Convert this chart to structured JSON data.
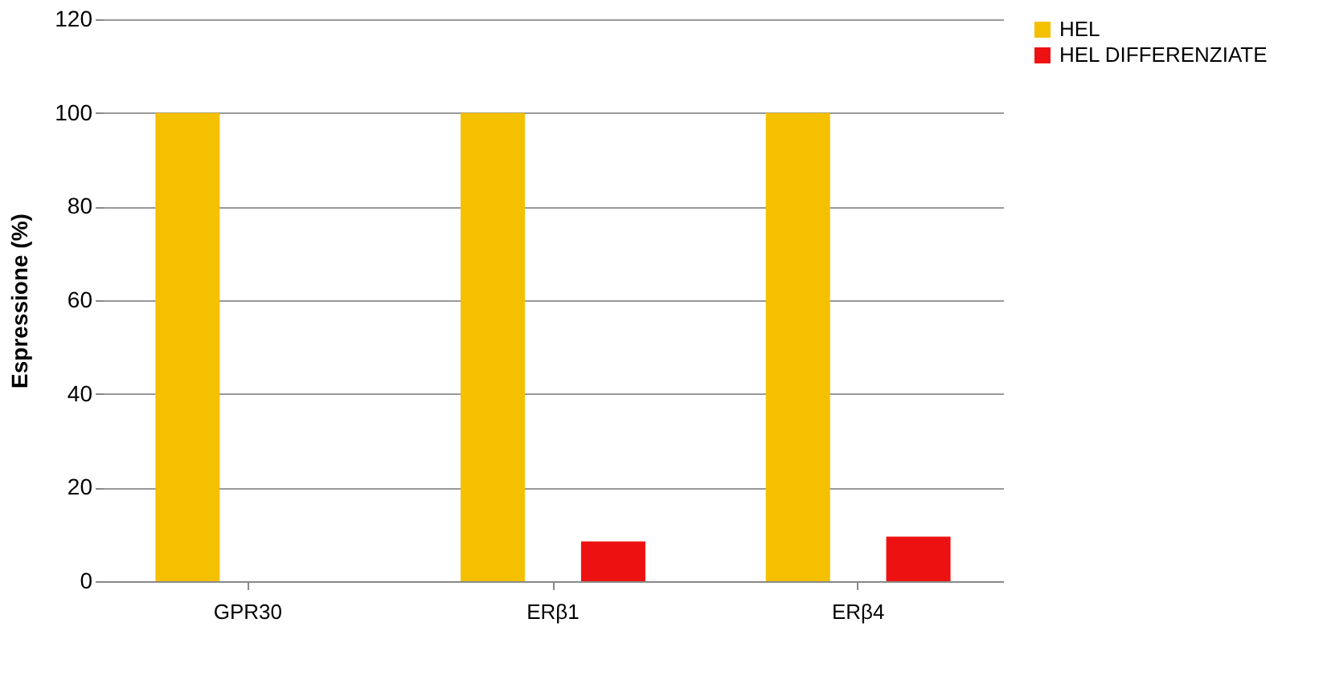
{
  "chart_data": {
    "type": "bar",
    "ylabel": "Espressione (%)",
    "categories": [
      "GPR30",
      "ERβ1",
      "ERβ4"
    ],
    "series": [
      {
        "name": "HEL",
        "color": "#f5c000",
        "values": [
          100,
          100,
          100
        ]
      },
      {
        "name": "HEL DIFFERENZIATE",
        "color": "#ee1111",
        "values": [
          0,
          8.5,
          9.5
        ]
      }
    ],
    "ylim": [
      0,
      120
    ],
    "yticks": [
      0,
      20,
      40,
      60,
      80,
      100,
      120
    ],
    "grid": "y",
    "legend": "right"
  }
}
